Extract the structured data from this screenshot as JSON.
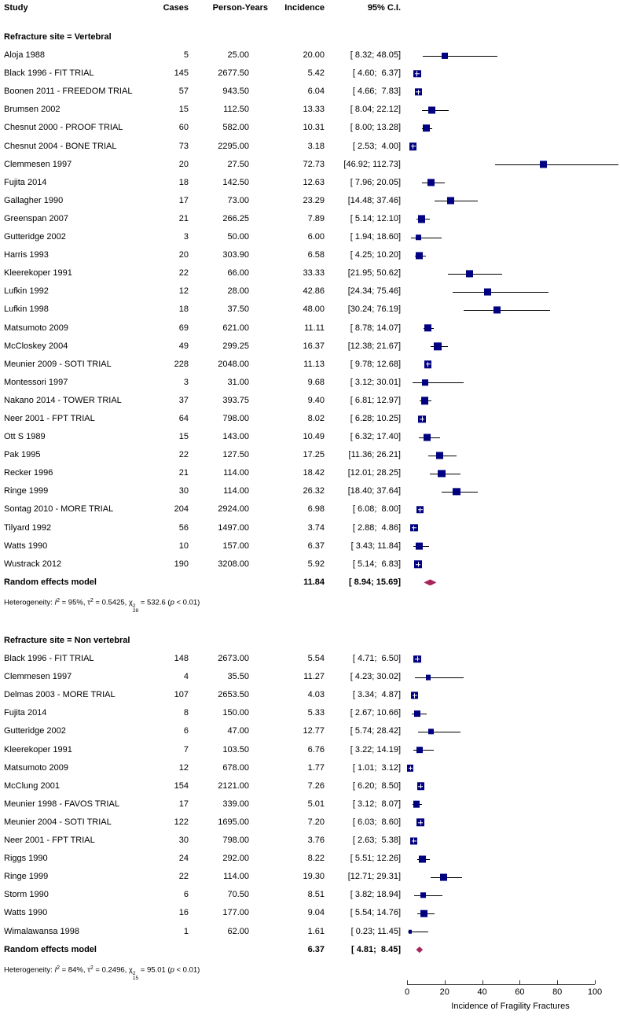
{
  "chart_data": {
    "type": "table",
    "subtype": "forest-plot",
    "columns": {
      "study": "Study",
      "cases": "Cases",
      "person_years": "Person-Years",
      "incidence": "Incidence",
      "ci": "95% C.I."
    },
    "colors": {
      "square": "#000080",
      "diamond": "#A8245C",
      "ci_line": "#000000",
      "axis": "#333333",
      "text": "#000000"
    },
    "axis": {
      "min": 0,
      "max": 100,
      "ticks": [
        0,
        20,
        40,
        60,
        80,
        100
      ],
      "label": "Incidence of Fragility Fractures"
    },
    "sections": [
      {
        "title": "Refracture site = Vertebral",
        "tau2": 0.5425,
        "studies": [
          {
            "name": "Aloja 1988",
            "cases": 5,
            "py": "25.00",
            "inc": "20.00",
            "ci": "[ 8.32; 48.05]"
          },
          {
            "name": "Black 1996 - FIT TRIAL",
            "cases": 145,
            "py": "2677.50",
            "inc": "5.42",
            "ci": "[ 4.60;  6.37]"
          },
          {
            "name": "Boonen 2011 - FREEDOM TRIAL",
            "cases": 57,
            "py": "943.50",
            "inc": "6.04",
            "ci": "[ 4.66;  7.83]"
          },
          {
            "name": "Brumsen 2002",
            "cases": 15,
            "py": "112.50",
            "inc": "13.33",
            "ci": "[ 8.04; 22.12]"
          },
          {
            "name": "Chesnut 2000 - PROOF TRIAL",
            "cases": 60,
            "py": "582.00",
            "inc": "10.31",
            "ci": "[ 8.00; 13.28]"
          },
          {
            "name": "Chesnut 2004 - BONE TRIAL",
            "cases": 73,
            "py": "2295.00",
            "inc": "3.18",
            "ci": "[ 2.53;  4.00]"
          },
          {
            "name": "Clemmesen 1997",
            "cases": 20,
            "py": "27.50",
            "inc": "72.73",
            "ci": "[46.92; 112.73]"
          },
          {
            "name": "Fujita 2014",
            "cases": 18,
            "py": "142.50",
            "inc": "12.63",
            "ci": "[ 7.96; 20.05]"
          },
          {
            "name": "Gallagher 1990",
            "cases": 17,
            "py": "73.00",
            "inc": "23.29",
            "ci": "[14.48; 37.46]"
          },
          {
            "name": "Greenspan 2007",
            "cases": 21,
            "py": "266.25",
            "inc": "7.89",
            "ci": "[ 5.14; 12.10]"
          },
          {
            "name": "Gutteridge 2002",
            "cases": 3,
            "py": "50.00",
            "inc": "6.00",
            "ci": "[ 1.94; 18.60]"
          },
          {
            "name": "Harris 1993",
            "cases": 20,
            "py": "303.90",
            "inc": "6.58",
            "ci": "[ 4.25; 10.20]"
          },
          {
            "name": "Kleerekoper 1991",
            "cases": 22,
            "py": "66.00",
            "inc": "33.33",
            "ci": "[21.95; 50.62]"
          },
          {
            "name": "Lufkin 1992",
            "cases": 12,
            "py": "28.00",
            "inc": "42.86",
            "ci": "[24.34; 75.46]"
          },
          {
            "name": "Lufkin 1998",
            "cases": 18,
            "py": "37.50",
            "inc": "48.00",
            "ci": "[30.24; 76.19]"
          },
          {
            "name": "Matsumoto 2009",
            "cases": 69,
            "py": "621.00",
            "inc": "11.11",
            "ci": "[ 8.78; 14.07]"
          },
          {
            "name": "McCloskey 2004",
            "cases": 49,
            "py": "299.25",
            "inc": "16.37",
            "ci": "[12.38; 21.67]"
          },
          {
            "name": "Meunier 2009 - SOTI TRIAL",
            "cases": 228,
            "py": "2048.00",
            "inc": "11.13",
            "ci": "[ 9.78; 12.68]"
          },
          {
            "name": "Montessori 1997",
            "cases": 3,
            "py": "31.00",
            "inc": "9.68",
            "ci": "[ 3.12; 30.01]"
          },
          {
            "name": "Nakano 2014 - TOWER TRIAL",
            "cases": 37,
            "py": "393.75",
            "inc": "9.40",
            "ci": "[ 6.81; 12.97]"
          },
          {
            "name": "Neer 2001 - FPT TRIAL",
            "cases": 64,
            "py": "798.00",
            "inc": "8.02",
            "ci": "[ 6.28; 10.25]"
          },
          {
            "name": "Ott S 1989",
            "cases": 15,
            "py": "143.00",
            "inc": "10.49",
            "ci": "[ 6.32; 17.40]"
          },
          {
            "name": "Pak 1995",
            "cases": 22,
            "py": "127.50",
            "inc": "17.25",
            "ci": "[11.36; 26.21]"
          },
          {
            "name": "Recker 1996",
            "cases": 21,
            "py": "114.00",
            "inc": "18.42",
            "ci": "[12.01; 28.25]"
          },
          {
            "name": "Ringe 1999",
            "cases": 30,
            "py": "114.00",
            "inc": "26.32",
            "ci": "[18.40; 37.64]"
          },
          {
            "name": "Sontag 2010 - MORE TRIAL",
            "cases": 204,
            "py": "2924.00",
            "inc": "6.98",
            "ci": "[ 6.08;  8.00]"
          },
          {
            "name": "Tilyard 1992",
            "cases": 56,
            "py": "1497.00",
            "inc": "3.74",
            "ci": "[ 2.88;  4.86]"
          },
          {
            "name": "Watts 1990",
            "cases": 10,
            "py": "157.00",
            "inc": "6.37",
            "ci": "[ 3.43; 11.84]"
          },
          {
            "name": "Wustrack 2012",
            "cases": 190,
            "py": "3208.00",
            "inc": "5.92",
            "ci": "[ 5.14;  6.83]"
          }
        ],
        "summary": {
          "label": "Random effects model",
          "inc": "11.84",
          "ci": "[ 8.94; 15.69]"
        },
        "heterogeneity_parts": [
          {
            "t": "Heterogeneity: "
          },
          {
            "t": "I",
            "s": "i"
          },
          {
            "t": "2",
            "s": "sup"
          },
          {
            "t": " = 95%, τ"
          },
          {
            "t": "2",
            "s": "sup"
          },
          {
            "t": " = 0.5425, χ"
          },
          {
            "t": "2|28",
            "s": "stack"
          },
          {
            "t": " = 532.6 ("
          },
          {
            "t": "p",
            "s": "i"
          },
          {
            "t": " < 0.01)"
          }
        ]
      },
      {
        "title": "Refracture site = Non vertebral",
        "tau2": 0.2496,
        "studies": [
          {
            "name": "Black 1996 - FIT TRIAL",
            "cases": 148,
            "py": "2673.00",
            "inc": "5.54",
            "ci": "[ 4.71;  6.50]"
          },
          {
            "name": "Clemmesen 1997",
            "cases": 4,
            "py": "35.50",
            "inc": "11.27",
            "ci": "[ 4.23; 30.02]"
          },
          {
            "name": "Delmas 2003 - MORE TRIAL",
            "cases": 107,
            "py": "2653.50",
            "inc": "4.03",
            "ci": "[ 3.34;  4.87]"
          },
          {
            "name": "Fujita 2014",
            "cases": 8,
            "py": "150.00",
            "inc": "5.33",
            "ci": "[ 2.67; 10.66]"
          },
          {
            "name": "Gutteridge 2002",
            "cases": 6,
            "py": "47.00",
            "inc": "12.77",
            "ci": "[ 5.74; 28.42]"
          },
          {
            "name": "Kleerekoper 1991",
            "cases": 7,
            "py": "103.50",
            "inc": "6.76",
            "ci": "[ 3.22; 14.19]"
          },
          {
            "name": "Matsumoto 2009",
            "cases": 12,
            "py": "678.00",
            "inc": "1.77",
            "ci": "[ 1.01;  3.12]"
          },
          {
            "name": "McClung 2001",
            "cases": 154,
            "py": "2121.00",
            "inc": "7.26",
            "ci": "[ 6.20;  8.50]"
          },
          {
            "name": "Meunier 1998 - FAVOS TRIAL",
            "cases": 17,
            "py": "339.00",
            "inc": "5.01",
            "ci": "[ 3.12;  8.07]"
          },
          {
            "name": "Meunier 2004 - SOTI TRIAL",
            "cases": 122,
            "py": "1695.00",
            "inc": "7.20",
            "ci": "[ 6.03;  8.60]"
          },
          {
            "name": "Neer 2001 - FPT TRIAL",
            "cases": 30,
            "py": "798.00",
            "inc": "3.76",
            "ci": "[ 2.63;  5.38]"
          },
          {
            "name": "Riggs 1990",
            "cases": 24,
            "py": "292.00",
            "inc": "8.22",
            "ci": "[ 5.51; 12.26]"
          },
          {
            "name": "Ringe 1999",
            "cases": 22,
            "py": "114.00",
            "inc": "19.30",
            "ci": "[12.71; 29.31]"
          },
          {
            "name": "Storm 1990",
            "cases": 6,
            "py": "70.50",
            "inc": "8.51",
            "ci": "[ 3.82; 18.94]"
          },
          {
            "name": "Watts 1990",
            "cases": 16,
            "py": "177.00",
            "inc": "9.04",
            "ci": "[ 5.54; 14.76]"
          },
          {
            "name": "Wimalawansa 1998",
            "cases": 1,
            "py": "62.00",
            "inc": "1.61",
            "ci": "[ 0.23; 11.45]"
          }
        ],
        "summary": {
          "label": "Random effects model",
          "inc": "6.37",
          "ci": "[ 4.81;  8.45]"
        },
        "heterogeneity_parts": [
          {
            "t": "Heterogeneity: "
          },
          {
            "t": "I",
            "s": "i"
          },
          {
            "t": "2",
            "s": "sup"
          },
          {
            "t": " = 84%, τ"
          },
          {
            "t": "2",
            "s": "sup"
          },
          {
            "t": " = 0.2496, χ"
          },
          {
            "t": "2|15",
            "s": "stack"
          },
          {
            "t": " = 95.01 ("
          },
          {
            "t": "p",
            "s": "i"
          },
          {
            "t": " < 0.01)"
          }
        ]
      }
    ]
  }
}
